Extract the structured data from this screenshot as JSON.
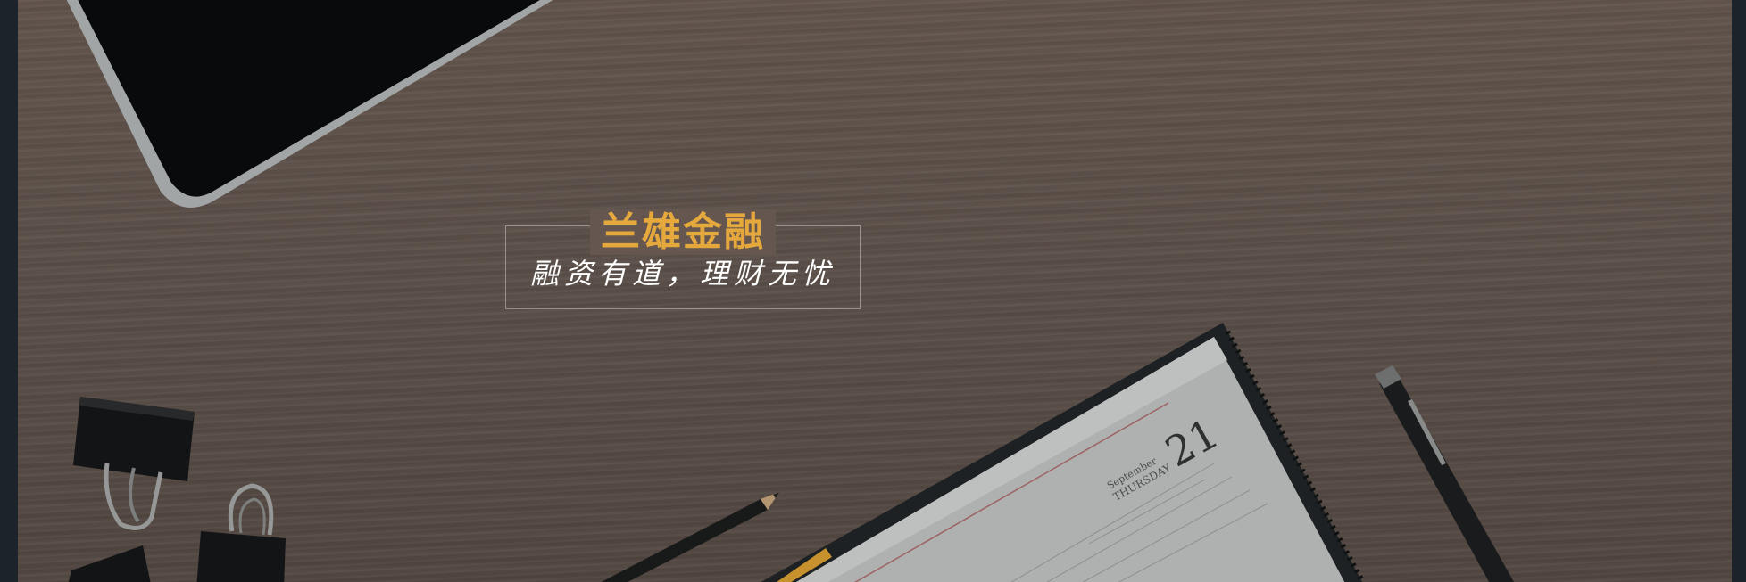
{
  "banner": {
    "brand_name": "兰雄金融",
    "slogan": "融资有道，理财无忧",
    "colors": {
      "brand": "#e5a83c",
      "slogan": "#ffffff",
      "frame": "#1d232a"
    }
  },
  "diary": {
    "month": "September",
    "weekday": "THURSDAY",
    "day": "21"
  },
  "objects": [
    "tablet-icon",
    "binder-clip-icon",
    "pencil-icon",
    "pen-icon",
    "diary-icon"
  ]
}
